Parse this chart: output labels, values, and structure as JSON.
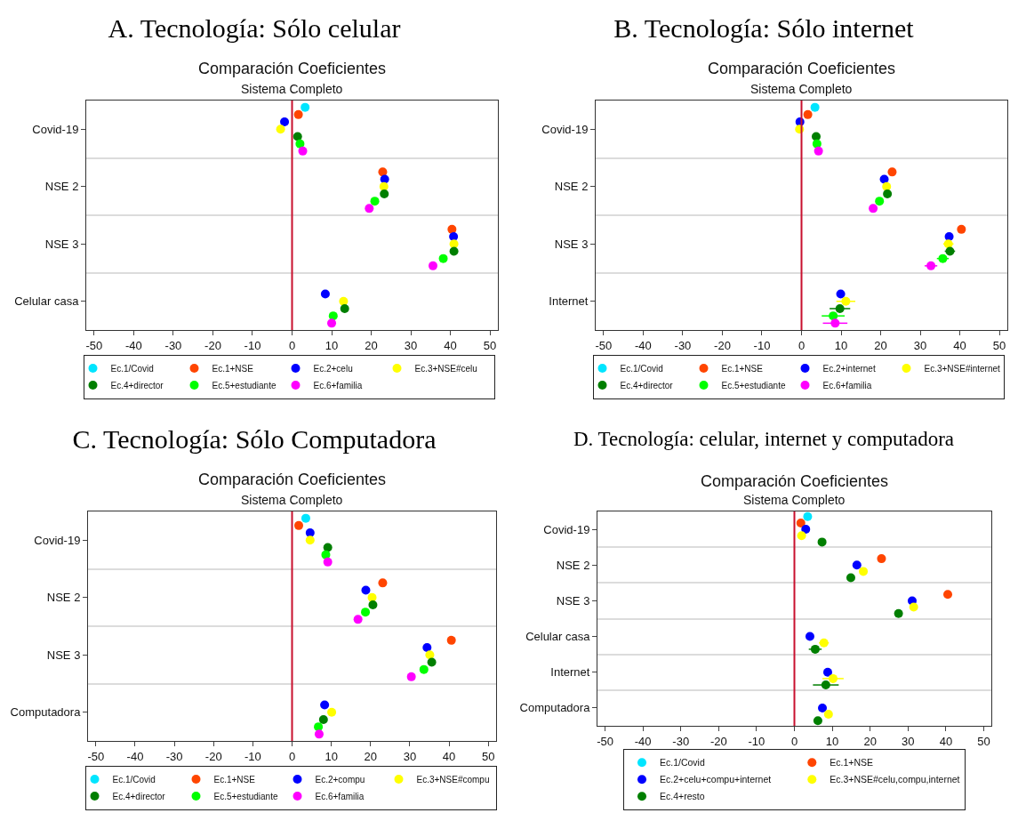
{
  "chart_data": [
    {
      "type": "scatter",
      "orientation": "horizontal",
      "title": "A. Tecnología: Sólo celular",
      "subtitle": "Comparación Coeficientes",
      "annotations": [
        "Sistema Completo"
      ],
      "categories": [
        "Covid-19",
        "NSE 2",
        "NSE 3",
        "Celular casa"
      ],
      "xlim": [
        -52,
        52
      ],
      "xticks": [
        -50,
        -40,
        -30,
        -20,
        -10,
        0,
        10,
        20,
        30,
        40,
        50
      ],
      "grid": "y",
      "legend": "bottom",
      "marker": "circle",
      "ref_lines": [
        {
          "axis": "x",
          "value": 0,
          "color": "#c8102e"
        }
      ],
      "series": [
        {
          "name": "Ec.1/Covid",
          "color": "#00e5ff",
          "values": [
            3.3,
            null,
            null,
            null
          ]
        },
        {
          "name": "Ec.1+NSE",
          "color": "#ff4500",
          "values": [
            1.6,
            22.9,
            40.4,
            null
          ]
        },
        {
          "name": "Ec.2+celu",
          "color": "#0000ff",
          "values": [
            -1.9,
            23.4,
            40.8,
            8.4
          ]
        },
        {
          "name": "Ec.3+NSE#celu",
          "color": "#ffff00",
          "values": [
            -2.9,
            23.2,
            40.9,
            13.0
          ]
        },
        {
          "name": "Ec.4+director",
          "color": "#007f00",
          "values": [
            1.4,
            23.3,
            40.9,
            13.3
          ]
        },
        {
          "name": "Ec.5+estudiante",
          "color": "#00ff00",
          "values": [
            2.0,
            20.9,
            38.2,
            10.4
          ]
        },
        {
          "name": "Ec.6+familia",
          "color": "#ff00ff",
          "values": [
            2.7,
            19.5,
            35.6,
            10.0
          ]
        }
      ]
    },
    {
      "type": "scatter",
      "orientation": "horizontal",
      "title": "B. Tecnología: Sólo internet",
      "subtitle": "Comparación Coeficientes",
      "annotations": [
        "Sistema Completo"
      ],
      "categories": [
        "Covid-19",
        "NSE 2",
        "NSE 3",
        "Internet"
      ],
      "xlim": [
        -52,
        52
      ],
      "xticks": [
        -50,
        -40,
        -30,
        -20,
        -10,
        0,
        10,
        20,
        30,
        40,
        50
      ],
      "grid": "y",
      "legend": "bottom",
      "marker": "circle",
      "ref_lines": [
        {
          "axis": "x",
          "value": 0,
          "color": "#c8102e"
        }
      ],
      "series": [
        {
          "name": "Ec.1/Covid",
          "color": "#00e5ff",
          "values": [
            3.4,
            null,
            null,
            null
          ]
        },
        {
          "name": "Ec.1+NSE",
          "color": "#ff4500",
          "values": [
            1.6,
            22.9,
            40.4,
            null
          ]
        },
        {
          "name": "Ec.2+internet",
          "color": "#0000ff",
          "values": [
            -0.4,
            20.9,
            37.3,
            9.9
          ]
        },
        {
          "name": "Ec.3+NSE#internet",
          "color": "#ffff00",
          "values": [
            -0.5,
            21.5,
            37.1,
            11.2
          ],
          "errors": [
            null,
            null,
            1.3,
            2.4
          ]
        },
        {
          "name": "Ec.4+director",
          "color": "#007f00",
          "values": [
            3.7,
            21.7,
            37.5,
            9.7
          ],
          "errors": [
            null,
            null,
            1.3,
            2.6
          ]
        },
        {
          "name": "Ec.5+estudiante",
          "color": "#00ff00",
          "values": [
            3.9,
            19.7,
            35.7,
            8.0
          ],
          "errors": [
            null,
            null,
            1.5,
            2.9
          ]
        },
        {
          "name": "Ec.6+familia",
          "color": "#ff00ff",
          "values": [
            4.3,
            18.1,
            32.7,
            8.5
          ],
          "errors": [
            null,
            null,
            1.6,
            3.1
          ]
        }
      ]
    },
    {
      "type": "scatter",
      "orientation": "horizontal",
      "title": "C. Tecnología: Sólo Computadora",
      "subtitle": "Comparación Coeficientes",
      "annotations": [
        "Sistema Completo"
      ],
      "categories": [
        "Covid-19",
        "NSE 2",
        "NSE 3",
        "Computadora"
      ],
      "xlim": [
        -52,
        52
      ],
      "xticks": [
        -50,
        -40,
        -30,
        -20,
        -10,
        0,
        10,
        20,
        30,
        40,
        50
      ],
      "grid": "y",
      "legend": "bottom",
      "marker": "circle",
      "ref_lines": [
        {
          "axis": "x",
          "value": 0,
          "color": "#c8102e"
        }
      ],
      "series": [
        {
          "name": "Ec.1/Covid",
          "color": "#00e5ff",
          "values": [
            3.5,
            null,
            null,
            null
          ]
        },
        {
          "name": "Ec.1+NSE",
          "color": "#ff4500",
          "values": [
            1.7,
            23.1,
            40.6,
            null
          ]
        },
        {
          "name": "Ec.2+compu",
          "color": "#0000ff",
          "values": [
            4.6,
            18.8,
            34.4,
            8.3
          ]
        },
        {
          "name": "Ec.3+NSE#compu",
          "color": "#ffff00",
          "values": [
            4.6,
            20.4,
            35.1,
            10.1
          ]
        },
        {
          "name": "Ec.4+director",
          "color": "#007f00",
          "values": [
            9.1,
            20.6,
            35.6,
            8.0
          ]
        },
        {
          "name": "Ec.5+estudiante",
          "color": "#00ff00",
          "values": [
            8.6,
            18.7,
            33.6,
            6.7
          ]
        },
        {
          "name": "Ec.6+familia",
          "color": "#ff00ff",
          "values": [
            9.1,
            16.8,
            30.4,
            6.9
          ]
        }
      ]
    },
    {
      "type": "scatter",
      "orientation": "horizontal",
      "title": "D. Tecnología: celular, internet y computadora",
      "subtitle": "Comparación Coeficientes",
      "annotations": [
        "Sistema Completo"
      ],
      "categories": [
        "Covid-19",
        "NSE 2",
        "NSE 3",
        "Celular casa",
        "Internet",
        "Computadora"
      ],
      "xlim": [
        -52,
        52
      ],
      "xticks": [
        -50,
        -40,
        -30,
        -20,
        -10,
        0,
        10,
        20,
        30,
        40,
        50
      ],
      "grid": "y",
      "legend": "bottom",
      "marker": "circle",
      "ref_lines": [
        {
          "axis": "x",
          "value": 0,
          "color": "#c8102e"
        }
      ],
      "series": [
        {
          "name": "Ec.1/Covid",
          "color": "#00e5ff",
          "values": [
            3.5,
            null,
            null,
            null,
            null,
            null
          ]
        },
        {
          "name": "Ec.1+NSE",
          "color": "#ff4500",
          "values": [
            1.7,
            23.0,
            40.5,
            null,
            null,
            null
          ]
        },
        {
          "name": "Ec.2+celu+compu+internet",
          "color": "#0000ff",
          "values": [
            3.0,
            16.5,
            31.1,
            4.1,
            8.8,
            7.4
          ]
        },
        {
          "name": "Ec.3+NSE#celu,compu,internet",
          "color": "#ffff00",
          "values": [
            1.9,
            18.2,
            31.5,
            7.8,
            10.2,
            9.0
          ],
          "errors": [
            null,
            null,
            null,
            1.3,
            2.8,
            null
          ]
        },
        {
          "name": "Ec.4+resto",
          "color": "#007f00",
          "values": [
            7.3,
            14.9,
            27.5,
            5.5,
            8.3,
            6.2
          ],
          "errors": [
            null,
            null,
            null,
            1.7,
            3.4,
            null
          ]
        }
      ]
    }
  ]
}
